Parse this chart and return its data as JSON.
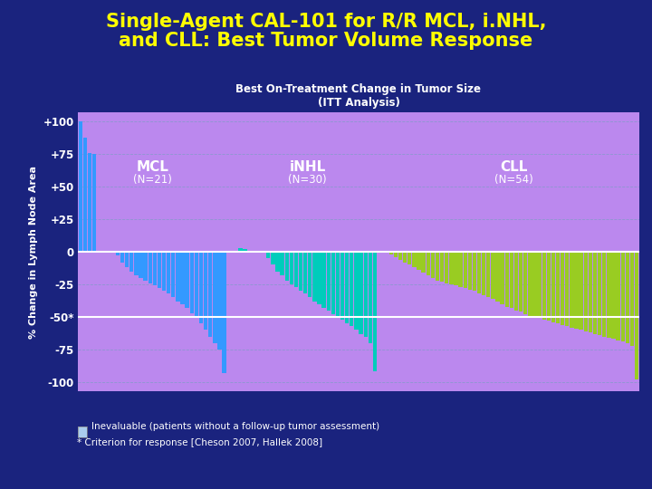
{
  "title_line1": "Single-Agent CAL-101 for R/R MCL, i.NHL,",
  "title_line2": "and CLL: Best Tumor Volume Response",
  "subtitle": "Best On-Treatment Change in Tumor Size",
  "subtitle2": "(ITT Analysis)",
  "ylabel": "% Change in Lymph Node Area",
  "bg_color": "#1a237e",
  "plot_bg_color": "#bb88ee",
  "title_color": "#ffff00",
  "subtitle_color": "#ffffff",
  "ylabel_color": "#ffffff",
  "tick_color": "#ffffff",
  "grid_color": "#8899cc",
  "ref_line_color": "#ffffff",
  "mcl_color": "#3399ff",
  "inhl_color": "#00ccbb",
  "cll_color": "#99cc22",
  "ineval_color": "#aaccee",
  "mcl_values": [
    100,
    88,
    76,
    75,
    0,
    0,
    0,
    0,
    -3,
    -8,
    -12,
    -15,
    -18,
    -20,
    -22,
    -24,
    -26,
    -28,
    -30,
    -32,
    -35,
    -38,
    -40,
    -43,
    -47,
    -50,
    -55,
    -60,
    -65,
    -70,
    -75,
    -93
  ],
  "mcl_ineval": [
    4,
    5,
    6,
    7
  ],
  "inhl_values": [
    3,
    2,
    1,
    0,
    0,
    0,
    -5,
    -10,
    -15,
    -18,
    -22,
    -25,
    -27,
    -30,
    -32,
    -35,
    -38,
    -40,
    -43,
    -45,
    -48,
    -50,
    -52,
    -55,
    -57,
    -60,
    -63,
    -65,
    -70,
    -92
  ],
  "inhl_ineval": [
    3,
    4,
    5
  ],
  "cll_values": [
    -2,
    -4,
    -6,
    -8,
    -10,
    -12,
    -14,
    -16,
    -18,
    -20,
    -22,
    -23,
    -24,
    -25,
    -26,
    -27,
    -28,
    -29,
    -30,
    -32,
    -33,
    -35,
    -36,
    -38,
    -40,
    -42,
    -43,
    -45,
    -46,
    -48,
    -49,
    -50,
    -51,
    -52,
    -53,
    -54,
    -55,
    -56,
    -57,
    -58,
    -59,
    -60,
    -61,
    -62,
    -63,
    -64,
    -65,
    -66,
    -67,
    -68,
    -69,
    -70,
    -72,
    -98
  ],
  "cll_ineval": [],
  "yticks": [
    -100,
    -75,
    -50,
    -25,
    0,
    25,
    50,
    75,
    100
  ],
  "ytick_labels": [
    "-100",
    "-75",
    "-50*",
    "-25",
    "0",
    "+25",
    "+50",
    "+75",
    "+100"
  ],
  "ylim": [
    -107,
    107
  ],
  "footnote1": "Inevaluable (patients without a follow-up tumor assessment)",
  "footnote2": "* Criterion for response [Cheson 2007, Hallek 2008]"
}
